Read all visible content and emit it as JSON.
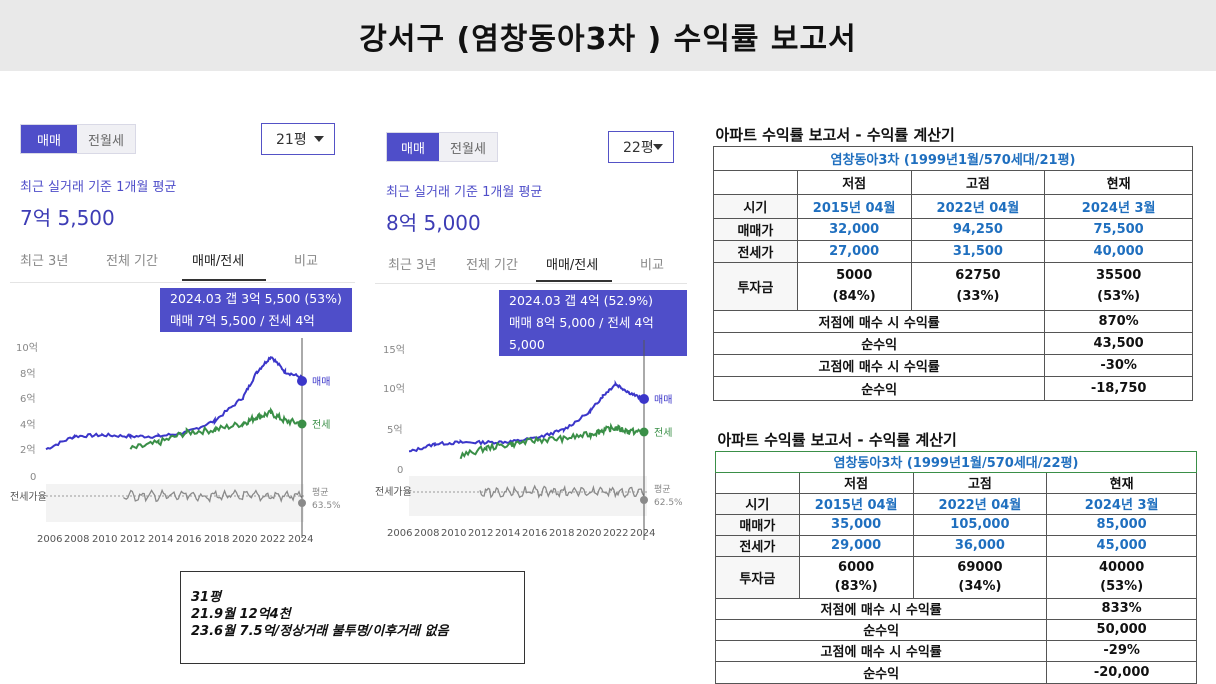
{
  "title": "강서구 (염창동아3차 ) 수익률 보고서",
  "colors": {
    "accent": "#4f4ec9",
    "sale": "#3b36c9",
    "jeonse": "#3a8f47",
    "ratio": "#8a8a8a",
    "blue_text": "#1f6fbf"
  },
  "panel1": {
    "toggle_on": "매매",
    "toggle_off": "전월세",
    "select": "21평",
    "subtitle": "최근 실거래 기준 1개월 평균",
    "price": "7억 5,500",
    "tabs": [
      "최근 3년",
      "전체 기간",
      "매매/전세",
      "비교"
    ],
    "tooltip_line1": "2024.03  갭 3억 5,500 (53%)",
    "tooltip_line2": "매매 7억 5,500 / 전세 4억",
    "y_ticks": [
      "10억",
      "8억",
      "6억",
      "4억",
      "2억",
      "0"
    ],
    "ratio_label": "전세가율",
    "avg_label": "평균",
    "avg_value": "63.5%",
    "sale_label": "매매",
    "jeonse_label": "전세",
    "x_ticks": [
      "2006",
      "2008",
      "2010",
      "2012",
      "2014",
      "2016",
      "2018",
      "2020",
      "2022",
      "2024"
    ]
  },
  "panel2": {
    "toggle_on": "매매",
    "toggle_off": "전월세",
    "select": "22평",
    "subtitle": "최근 실거래 기준 1개월 평균",
    "price": "8억 5,000",
    "tabs": [
      "최근 3년",
      "전체 기간",
      "매매/전세",
      "비교"
    ],
    "tooltip_line1": "2024.03  갭 4억 (52.9%)",
    "tooltip_line2": "매매 8억 5,000 / 전세 4억 5,000",
    "y_ticks": [
      "15억",
      "10억",
      "5억",
      "0"
    ],
    "ratio_label": "전세가율",
    "avg_label": "평균",
    "avg_value": "62.5%",
    "sale_label": "매매",
    "jeonse_label": "전세",
    "x_ticks": [
      "2006",
      "2008",
      "2010",
      "2012",
      "2014",
      "2016",
      "2018",
      "2020",
      "2022",
      "2024"
    ]
  },
  "memo": {
    "line1": "31평",
    "line2": "21.9월  12억4천",
    "line3": "23.6월  7.5억/정상거래 불투명/이후거래 없음"
  },
  "table1": {
    "title": "아파트 수익률 보고서 - 수익률 계산기",
    "subtitle": "염창동아3차 (1999년1월/570세대/21평)",
    "headers": [
      "저점",
      "고점",
      "현재"
    ],
    "rows": {
      "period": {
        "label": "시기",
        "values": [
          "2015년 04월",
          "2022년 04월",
          "2024년 3월"
        ]
      },
      "sale": {
        "label": "매매가",
        "values": [
          "32,000",
          "94,250",
          "75,500"
        ]
      },
      "jeonse": {
        "label": "전세가",
        "values": [
          "27,000",
          "31,500",
          "40,000"
        ]
      },
      "invest": {
        "label": "투자금",
        "values": [
          "5000",
          "62750",
          "35500"
        ],
        "pcts": [
          "(84%)",
          "(33%)",
          "(53%)"
        ]
      }
    },
    "low_return_label": "저점에 매수 시 수익률",
    "low_return": "870%",
    "low_profit_label": "순수익",
    "low_profit": "43,500",
    "high_return_label": "고점에 매수 시 수익률",
    "high_return": "-30%",
    "high_profit_label": "순수익",
    "high_profit": "-18,750"
  },
  "table2": {
    "title": "아파트 수익률 보고서 - 수익률 계산기",
    "subtitle": "염창동아3차 (1999년1월/570세대/22평)",
    "headers": [
      "저점",
      "고점",
      "현재"
    ],
    "rows": {
      "period": {
        "label": "시기",
        "values": [
          "2015년 04월",
          "2022년 04월",
          "2024년 3월"
        ]
      },
      "sale": {
        "label": "매매가",
        "values": [
          "35,000",
          "105,000",
          "85,000"
        ]
      },
      "jeonse": {
        "label": "전세가",
        "values": [
          "29,000",
          "36,000",
          "45,000"
        ]
      },
      "invest": {
        "label": "투자금",
        "values": [
          "6000",
          "69000",
          "40000"
        ],
        "pcts": [
          "(83%)",
          "(34%)",
          "(53%)"
        ]
      }
    },
    "low_return_label": "저점에 매수 시 수익률",
    "low_return": "833%",
    "low_profit_label": "순수익",
    "low_profit": "50,000",
    "high_return_label": "고점에 매수 시 수익률",
    "high_return": "-29%",
    "high_profit_label": "순수익",
    "high_profit": "-20,000"
  },
  "chart_data": [
    {
      "type": "line",
      "title": "",
      "x_label": "",
      "y_label": "",
      "ylim": [
        0,
        10
      ],
      "x": [
        2006,
        2008,
        2010,
        2012,
        2014,
        2016,
        2018,
        2020,
        2021,
        2022,
        2023,
        2024.2
      ],
      "series": [
        {
          "name": "매매",
          "values": [
            2.0,
            3.0,
            3.1,
            3.0,
            3.0,
            3.3,
            4.2,
            6.0,
            8.0,
            9.2,
            8.0,
            7.55
          ]
        },
        {
          "name": "전세",
          "values": [
            null,
            null,
            null,
            2.0,
            2.5,
            3.3,
            3.5,
            4.0,
            4.5,
            4.8,
            4.2,
            4.0
          ]
        }
      ],
      "avg_ratio": "63.5%"
    },
    {
      "type": "line",
      "title": "",
      "x_label": "",
      "y_label": "",
      "ylim": [
        0,
        15
      ],
      "x": [
        2006,
        2008,
        2010,
        2012,
        2014,
        2016,
        2018,
        2020,
        2021,
        2022,
        2023,
        2024.2
      ],
      "series": [
        {
          "name": "매매",
          "values": [
            2.0,
            3.0,
            3.2,
            3.2,
            3.3,
            3.8,
            4.8,
            7.0,
            9.0,
            10.5,
            9.5,
            8.5
          ]
        },
        {
          "name": "전세",
          "values": [
            null,
            null,
            1.5,
            2.5,
            3.0,
            3.5,
            3.7,
            4.2,
            4.7,
            5.0,
            4.6,
            4.5
          ]
        }
      ],
      "avg_ratio": "62.5%"
    }
  ]
}
